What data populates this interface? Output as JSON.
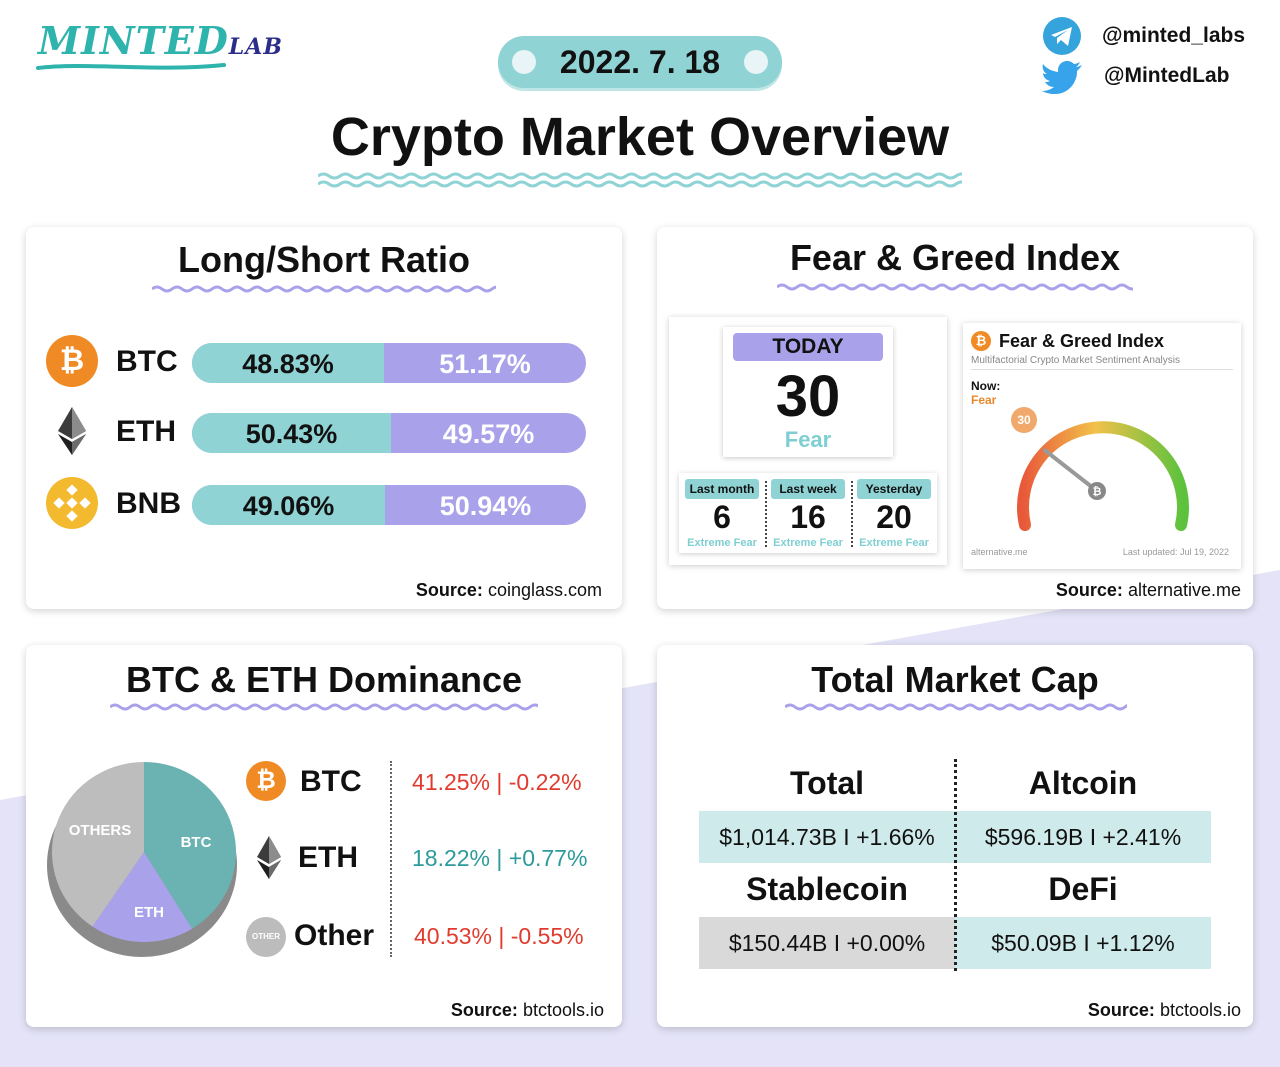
{
  "brand": {
    "logo_main": "MINTED",
    "logo_sub": "LAB"
  },
  "header": {
    "date": "2022. 7. 18",
    "title": "Crypto Market Overview",
    "telegram_handle": "@minted_labs",
    "twitter_handle": "@MintedLab"
  },
  "colors": {
    "teal": "#8fd3d5",
    "lavender": "#a9a2ea",
    "red": "#e03b2e",
    "teal_text": "#2d9a9b"
  },
  "long_short": {
    "title": "Long/Short Ratio",
    "rows": [
      {
        "coin": "BTC",
        "long": "48.83%",
        "short": "51.17%",
        "long_value": 48.83,
        "icon": "bitcoin-icon"
      },
      {
        "coin": "ETH",
        "long": "50.43%",
        "short": "49.57%",
        "long_value": 50.43,
        "icon": "ethereum-icon"
      },
      {
        "coin": "BNB",
        "long": "49.06%",
        "short": "50.94%",
        "long_value": 49.06,
        "icon": "bnb-icon"
      }
    ],
    "source_label": "Source:",
    "source": "coinglass.com"
  },
  "fear_greed": {
    "title": "Fear & Greed Index",
    "today_label": "TODAY",
    "today_value": "30",
    "today_status": "Fear",
    "history": [
      {
        "label": "Last month",
        "value": "6",
        "status": "Extreme Fear"
      },
      {
        "label": "Last week",
        "value": "16",
        "status": "Extreme Fear"
      },
      {
        "label": "Yesterday",
        "value": "20",
        "status": "Extreme Fear"
      }
    ],
    "widget": {
      "title": "Fear & Greed Index",
      "subtitle": "Multifactorial Crypto Market Sentiment Analysis",
      "now_label": "Now:",
      "now_status": "Fear",
      "gauge_value": "30",
      "gauge_level": 30,
      "footer_left": "alternative.me",
      "footer_right": "Last updated: Jul 19, 2022"
    },
    "source_label": "Source:",
    "source": "alternative.me"
  },
  "dominance": {
    "title": "BTC & ETH Dominance",
    "pie_labels": {
      "others": "OTHERS",
      "btc": "BTC",
      "eth": "ETH"
    },
    "rows": [
      {
        "name": "BTC",
        "value": "41.25% | -0.22%",
        "share": 41.25
      },
      {
        "name": "ETH",
        "value": "18.22% | +0.77%",
        "share": 18.22
      },
      {
        "name": "Other",
        "value": "40.53% | -0.55%",
        "share": 40.53,
        "icon_text": "OTHER"
      }
    ],
    "source_label": "Source:",
    "source": "btctools.io"
  },
  "market_cap": {
    "title": "Total Market Cap",
    "headers": [
      "Total",
      "Altcoin",
      "Stablecoin",
      "DeFi"
    ],
    "values": [
      "$1,014.73B I +1.66%",
      "$596.19B I +2.41%",
      "$150.44B I +0.00%",
      "$50.09B I +1.12%"
    ],
    "source_label": "Source:",
    "source": "btctools.io"
  }
}
